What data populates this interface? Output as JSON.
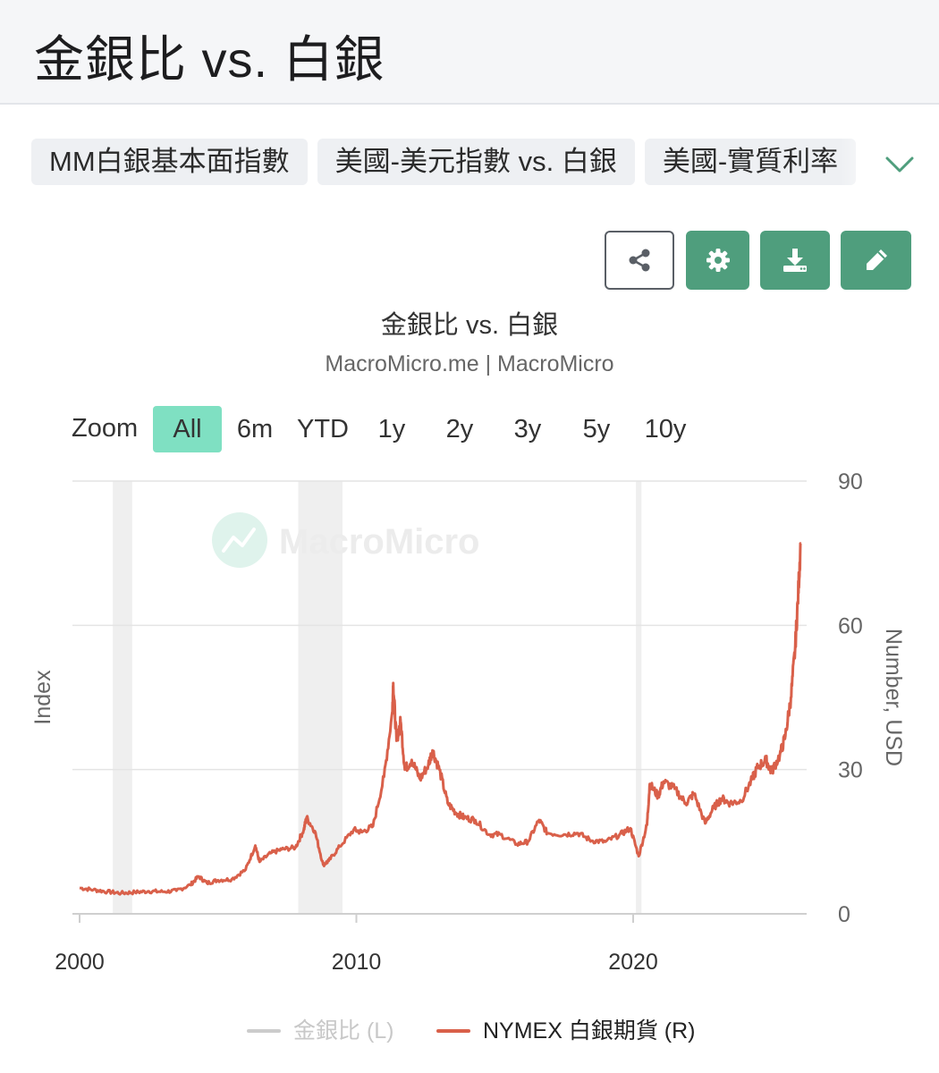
{
  "page": {
    "title": "金銀比 vs. 白銀"
  },
  "tabs": [
    {
      "label": "MM白銀基本面指數"
    },
    {
      "label": "美國-美元指數 vs. 白銀"
    },
    {
      "label": "美國-實質利率"
    }
  ],
  "toolbar": {
    "share_icon": "share-icon",
    "settings_icon": "gear-icon",
    "download_icon": "download-icon",
    "edit_icon": "pencil-icon",
    "accent_color": "#4f9e7d"
  },
  "chart": {
    "title": "金銀比 vs. 白銀",
    "subtitle": "MacroMicro.me | MacroMicro",
    "watermark": "MacroMicro",
    "zoom": {
      "label": "Zoom",
      "buttons": [
        "All",
        "6m",
        "YTD",
        "1y",
        "2y",
        "3y",
        "5y",
        "10y"
      ],
      "active": "All"
    },
    "legend": [
      {
        "label": "金銀比 (L)",
        "color": "#cccccc",
        "visible": false
      },
      {
        "label": "NYMEX 白銀期貨 (R)",
        "color": "#d9604a",
        "visible": true
      }
    ]
  },
  "chart_data": {
    "type": "line",
    "title": "金銀比 vs. 白銀",
    "subtitle": "MacroMicro.me | MacroMicro",
    "left_axis": {
      "label": "Index",
      "ticks": []
    },
    "right_axis": {
      "label": "Number, USD",
      "ticks": [
        0,
        30,
        60,
        90
      ],
      "range": [
        0,
        90
      ]
    },
    "x_axis": {
      "ticks": [
        "2000",
        "2010",
        "2020"
      ],
      "range": [
        2000,
        2026.3
      ]
    },
    "grid": true,
    "legend_position": "bottom",
    "recession_bands": [
      [
        2001.2,
        2001.9
      ],
      [
        2007.9,
        2009.5
      ],
      [
        2020.1,
        2020.3
      ]
    ],
    "series": [
      {
        "name": "NYMEX 白銀期貨 (R)",
        "axis": "right",
        "color": "#d9604a",
        "points": [
          [
            2000.0,
            5.4
          ],
          [
            2000.5,
            5.0
          ],
          [
            2001.0,
            4.6
          ],
          [
            2001.5,
            4.3
          ],
          [
            2002.0,
            4.5
          ],
          [
            2002.5,
            4.7
          ],
          [
            2003.0,
            4.6
          ],
          [
            2003.5,
            4.8
          ],
          [
            2004.0,
            6.0
          ],
          [
            2004.3,
            7.8
          ],
          [
            2004.6,
            6.4
          ],
          [
            2005.0,
            7.0
          ],
          [
            2005.5,
            7.2
          ],
          [
            2006.0,
            9.2
          ],
          [
            2006.35,
            14.2
          ],
          [
            2006.5,
            10.8
          ],
          [
            2006.9,
            12.6
          ],
          [
            2007.3,
            13.4
          ],
          [
            2007.8,
            13.8
          ],
          [
            2008.1,
            17.5
          ],
          [
            2008.2,
            20.0
          ],
          [
            2008.5,
            17.2
          ],
          [
            2008.8,
            10.2
          ],
          [
            2009.0,
            11.0
          ],
          [
            2009.4,
            14.0
          ],
          [
            2009.9,
            17.5
          ],
          [
            2010.2,
            17.0
          ],
          [
            2010.6,
            18.2
          ],
          [
            2011.0,
            28.5
          ],
          [
            2011.3,
            42.0
          ],
          [
            2011.33,
            48.0
          ],
          [
            2011.45,
            36.0
          ],
          [
            2011.6,
            40.0
          ],
          [
            2011.75,
            30.0
          ],
          [
            2012.0,
            32.0
          ],
          [
            2012.3,
            28.0
          ],
          [
            2012.6,
            31.0
          ],
          [
            2012.75,
            34.0
          ],
          [
            2013.0,
            30.0
          ],
          [
            2013.3,
            23.0
          ],
          [
            2013.6,
            21.0
          ],
          [
            2013.9,
            20.0
          ],
          [
            2014.3,
            19.5
          ],
          [
            2014.8,
            16.5
          ],
          [
            2015.2,
            16.5
          ],
          [
            2015.8,
            14.5
          ],
          [
            2016.2,
            15.0
          ],
          [
            2016.6,
            19.5
          ],
          [
            2016.9,
            16.8
          ],
          [
            2017.5,
            16.5
          ],
          [
            2018.0,
            16.8
          ],
          [
            2018.5,
            15.2
          ],
          [
            2019.0,
            15.0
          ],
          [
            2019.5,
            16.4
          ],
          [
            2019.9,
            17.8
          ],
          [
            2020.2,
            12.0
          ],
          [
            2020.5,
            18.5
          ],
          [
            2020.6,
            27.0
          ],
          [
            2020.9,
            24.5
          ],
          [
            2021.1,
            27.5
          ],
          [
            2021.5,
            26.0
          ],
          [
            2021.9,
            23.0
          ],
          [
            2022.2,
            25.0
          ],
          [
            2022.6,
            18.8
          ],
          [
            2022.9,
            22.0
          ],
          [
            2023.2,
            24.0
          ],
          [
            2023.5,
            23.0
          ],
          [
            2023.9,
            23.5
          ],
          [
            2024.3,
            28.0
          ],
          [
            2024.5,
            30.5
          ],
          [
            2024.8,
            32.0
          ],
          [
            2025.0,
            29.5
          ],
          [
            2025.3,
            33.0
          ],
          [
            2025.5,
            37.0
          ],
          [
            2025.7,
            45.0
          ],
          [
            2025.85,
            55.0
          ],
          [
            2025.95,
            65.0
          ],
          [
            2026.05,
            77.0
          ]
        ]
      }
    ]
  }
}
